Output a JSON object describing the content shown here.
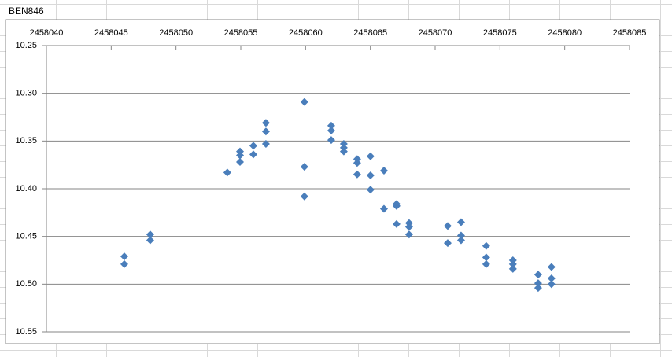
{
  "cells": [
    "BEN846"
  ],
  "chart_data": {
    "type": "scatter",
    "x": [
      2458046.01,
      2458046.01,
      2458048.01,
      2458048.01,
      2458053.96,
      2458054.94,
      2458054.94,
      2458054.94,
      2458055.97,
      2458055.97,
      2458056.94,
      2458056.94,
      2458056.94,
      2458059.91,
      2458059.91,
      2458059.91,
      2458061.98,
      2458061.98,
      2458061.98,
      2458062.95,
      2458062.95,
      2458062.95,
      2458063.98,
      2458063.98,
      2458063.98,
      2458065.01,
      2458065.01,
      2458065.01,
      2458066.05,
      2458066.05,
      2458067.02,
      2458067.02,
      2458067.02,
      2458067.99,
      2458067.99,
      2458067.99,
      2458070.97,
      2458070.97,
      2458072.0,
      2458072.0,
      2458072.0,
      2458073.94,
      2458073.94,
      2458073.94,
      2458076.0,
      2458076.0,
      2458076.0,
      2458077.95,
      2458077.95,
      2458077.95,
      2458078.98,
      2458078.98,
      2458078.98
    ],
    "series": [
      {
        "color": "#4a7ebb",
        "values": [
          10.471,
          10.479,
          10.448,
          10.454,
          10.383,
          10.361,
          10.365,
          10.372,
          10.355,
          10.364,
          10.331,
          10.34,
          10.353,
          10.309,
          10.377,
          10.408,
          10.334,
          10.339,
          10.349,
          10.353,
          10.357,
          10.361,
          10.369,
          10.373,
          10.385,
          10.366,
          10.386,
          10.401,
          10.381,
          10.421,
          10.416,
          10.418,
          10.437,
          10.436,
          10.44,
          10.448,
          10.439,
          10.457,
          10.435,
          10.449,
          10.454,
          10.46,
          10.472,
          10.479,
          10.475,
          10.479,
          10.484,
          10.49,
          10.499,
          10.504,
          10.482,
          10.494,
          10.5
        ]
      }
    ],
    "xlim": [
      2458040,
      2458085
    ],
    "xticks": [
      2458040,
      2458045,
      2458050,
      2458055,
      2458060,
      2458065,
      2458070,
      2458075,
      2458080,
      2458085
    ],
    "ylim": [
      10.25,
      10.55
    ],
    "yticks": [
      10.25,
      {
        "value": 10.3,
        "label": "10.30"
      },
      10.35,
      {
        "value": 10.4,
        "label": "10.40"
      },
      10.45,
      {
        "value": 10.5,
        "label": "10.50"
      },
      10.55
    ],
    "y_inverted": true,
    "x_axis_position": "top",
    "grid": true
  }
}
